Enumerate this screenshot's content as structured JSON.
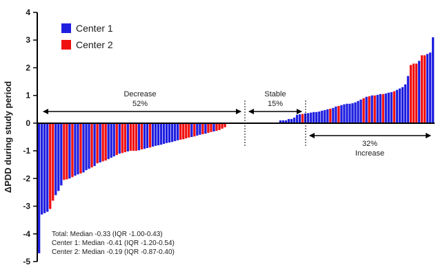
{
  "chart_data": {
    "type": "bar",
    "title": "",
    "xlabel": "",
    "ylabel": "ΔPDD during study period",
    "ylim": [
      -5,
      4
    ],
    "yticks": [
      -5,
      -4,
      -3,
      -2,
      -1,
      0,
      1,
      2,
      3,
      4
    ],
    "grid": false,
    "legend_position": "top-left",
    "series": [
      {
        "name": "Center 1",
        "color": "#1f1fe0"
      },
      {
        "name": "Center 2",
        "color": "#f01010"
      }
    ],
    "bars": [
      {
        "v": -4.7,
        "c": 0
      },
      {
        "v": -3.3,
        "c": 0
      },
      {
        "v": -3.25,
        "c": 0
      },
      {
        "v": -3.2,
        "c": 0
      },
      {
        "v": -3.1,
        "c": 1
      },
      {
        "v": -2.8,
        "c": 1
      },
      {
        "v": -2.6,
        "c": 0
      },
      {
        "v": -2.45,
        "c": 0
      },
      {
        "v": -2.25,
        "c": 0
      },
      {
        "v": -2.05,
        "c": 1
      },
      {
        "v": -2.03,
        "c": 1
      },
      {
        "v": -2.0,
        "c": 0
      },
      {
        "v": -1.95,
        "c": 1
      },
      {
        "v": -1.9,
        "c": 0
      },
      {
        "v": -1.85,
        "c": 0
      },
      {
        "v": -1.82,
        "c": 1
      },
      {
        "v": -1.78,
        "c": 0
      },
      {
        "v": -1.7,
        "c": 0
      },
      {
        "v": -1.65,
        "c": 0
      },
      {
        "v": -1.6,
        "c": 1
      },
      {
        "v": -1.55,
        "c": 0
      },
      {
        "v": -1.45,
        "c": 1
      },
      {
        "v": -1.42,
        "c": 0
      },
      {
        "v": -1.38,
        "c": 1
      },
      {
        "v": -1.35,
        "c": 1
      },
      {
        "v": -1.3,
        "c": 0
      },
      {
        "v": -1.25,
        "c": 0
      },
      {
        "v": -1.2,
        "c": 0
      },
      {
        "v": -1.15,
        "c": 1
      },
      {
        "v": -1.1,
        "c": 0
      },
      {
        "v": -1.08,
        "c": 1
      },
      {
        "v": -1.05,
        "c": 1
      },
      {
        "v": -1.02,
        "c": 0
      },
      {
        "v": -1.0,
        "c": 1
      },
      {
        "v": -1.0,
        "c": 1
      },
      {
        "v": -1.0,
        "c": 1
      },
      {
        "v": -0.98,
        "c": 0
      },
      {
        "v": -0.95,
        "c": 1
      },
      {
        "v": -0.93,
        "c": 0
      },
      {
        "v": -0.9,
        "c": 0
      },
      {
        "v": -0.88,
        "c": 1
      },
      {
        "v": -0.85,
        "c": 0
      },
      {
        "v": -0.82,
        "c": 0
      },
      {
        "v": -0.8,
        "c": 0
      },
      {
        "v": -0.78,
        "c": 0
      },
      {
        "v": -0.75,
        "c": 0
      },
      {
        "v": -0.72,
        "c": 0
      },
      {
        "v": -0.7,
        "c": 0
      },
      {
        "v": -0.68,
        "c": 0
      },
      {
        "v": -0.65,
        "c": 0
      },
      {
        "v": -0.62,
        "c": 0
      },
      {
        "v": -0.6,
        "c": 1
      },
      {
        "v": -0.58,
        "c": 1
      },
      {
        "v": -0.55,
        "c": 1
      },
      {
        "v": -0.52,
        "c": 1
      },
      {
        "v": -0.5,
        "c": 0
      },
      {
        "v": -0.48,
        "c": 1
      },
      {
        "v": -0.45,
        "c": 0
      },
      {
        "v": -0.42,
        "c": 0
      },
      {
        "v": -0.4,
        "c": 1
      },
      {
        "v": -0.38,
        "c": 0
      },
      {
        "v": -0.35,
        "c": 1
      },
      {
        "v": -0.32,
        "c": 1
      },
      {
        "v": -0.3,
        "c": 0
      },
      {
        "v": -0.28,
        "c": 1
      },
      {
        "v": -0.25,
        "c": 1
      },
      {
        "v": -0.2,
        "c": 1
      },
      {
        "v": -0.15,
        "c": 1
      },
      {
        "v": 0.0,
        "c": 0
      },
      {
        "v": 0.0,
        "c": 0
      },
      {
        "v": 0.0,
        "c": 0
      },
      {
        "v": 0.0,
        "c": 0
      },
      {
        "v": 0.0,
        "c": 0
      },
      {
        "v": 0.0,
        "c": 0
      },
      {
        "v": 0.0,
        "c": 0
      },
      {
        "v": 0.0,
        "c": 0
      },
      {
        "v": 0.0,
        "c": 0
      },
      {
        "v": 0.0,
        "c": 0
      },
      {
        "v": 0.0,
        "c": 0
      },
      {
        "v": 0.0,
        "c": 0
      },
      {
        "v": 0.0,
        "c": 0
      },
      {
        "v": 0.0,
        "c": 0
      },
      {
        "v": 0.0,
        "c": 0
      },
      {
        "v": 0.0,
        "c": 0
      },
      {
        "v": 0.0,
        "c": 0
      },
      {
        "v": 0.0,
        "c": 0
      },
      {
        "v": 0.0,
        "c": 0
      },
      {
        "v": 0.1,
        "c": 0
      },
      {
        "v": 0.1,
        "c": 0
      },
      {
        "v": 0.1,
        "c": 0
      },
      {
        "v": 0.15,
        "c": 0
      },
      {
        "v": 0.15,
        "c": 0
      },
      {
        "v": 0.2,
        "c": 0
      },
      {
        "v": 0.3,
        "c": 0
      },
      {
        "v": 0.32,
        "c": 0
      },
      {
        "v": 0.33,
        "c": 1
      },
      {
        "v": 0.35,
        "c": 0
      },
      {
        "v": 0.36,
        "c": 0
      },
      {
        "v": 0.38,
        "c": 0
      },
      {
        "v": 0.4,
        "c": 0
      },
      {
        "v": 0.4,
        "c": 0
      },
      {
        "v": 0.42,
        "c": 0
      },
      {
        "v": 0.45,
        "c": 0
      },
      {
        "v": 0.47,
        "c": 0
      },
      {
        "v": 0.5,
        "c": 0
      },
      {
        "v": 0.52,
        "c": 1
      },
      {
        "v": 0.55,
        "c": 0
      },
      {
        "v": 0.6,
        "c": 0
      },
      {
        "v": 0.62,
        "c": 1
      },
      {
        "v": 0.65,
        "c": 0
      },
      {
        "v": 0.68,
        "c": 0
      },
      {
        "v": 0.7,
        "c": 0
      },
      {
        "v": 0.7,
        "c": 0
      },
      {
        "v": 0.72,
        "c": 0
      },
      {
        "v": 0.75,
        "c": 0
      },
      {
        "v": 0.8,
        "c": 0
      },
      {
        "v": 0.85,
        "c": 0
      },
      {
        "v": 0.9,
        "c": 1
      },
      {
        "v": 0.95,
        "c": 0
      },
      {
        "v": 0.97,
        "c": 1
      },
      {
        "v": 1.0,
        "c": 0
      },
      {
        "v": 1.0,
        "c": 1
      },
      {
        "v": 1.02,
        "c": 0
      },
      {
        "v": 1.05,
        "c": 0
      },
      {
        "v": 1.05,
        "c": 1
      },
      {
        "v": 1.07,
        "c": 0
      },
      {
        "v": 1.1,
        "c": 0
      },
      {
        "v": 1.12,
        "c": 0
      },
      {
        "v": 1.15,
        "c": 1
      },
      {
        "v": 1.2,
        "c": 0
      },
      {
        "v": 1.25,
        "c": 0
      },
      {
        "v": 1.3,
        "c": 0
      },
      {
        "v": 1.4,
        "c": 0
      },
      {
        "v": 1.7,
        "c": 0
      },
      {
        "v": 2.1,
        "c": 1
      },
      {
        "v": 2.15,
        "c": 1
      },
      {
        "v": 2.15,
        "c": 1
      },
      {
        "v": 2.25,
        "c": 0
      },
      {
        "v": 2.45,
        "c": 1
      },
      {
        "v": 2.45,
        "c": 1
      },
      {
        "v": 2.5,
        "c": 0
      },
      {
        "v": 2.55,
        "c": 0
      },
      {
        "v": 3.1,
        "c": 0
      }
    ],
    "annotations": {
      "decrease": {
        "label": "Decrease",
        "pct": "52%"
      },
      "stable": {
        "label": "Stable",
        "pct": "15%"
      },
      "increase": {
        "label": "Increase",
        "pct": "32%"
      }
    },
    "stats": [
      "Total: Median -0.33 (IQR -1.00-0.43)",
      "Center 1: Median -0.41 (IQR -1.20-0.54)",
      "Center 2: Median -0.19 (IQR -0.87-0.40)"
    ]
  }
}
